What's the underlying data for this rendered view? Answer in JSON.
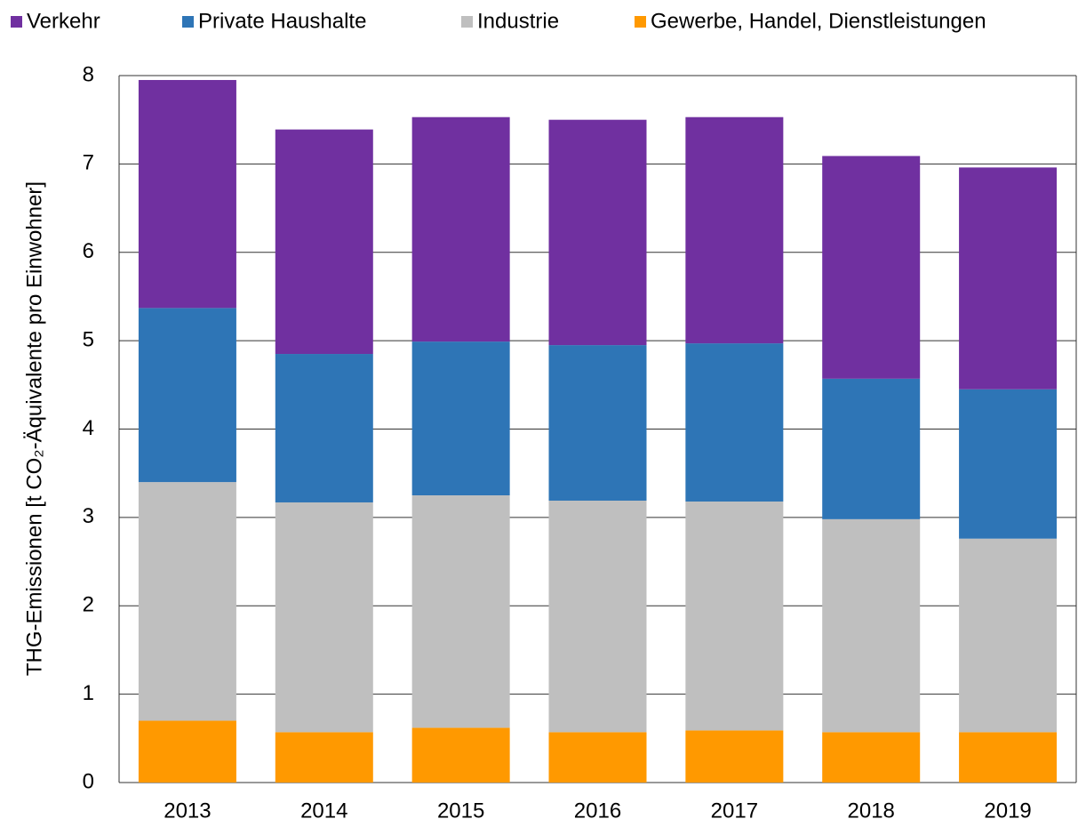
{
  "chart_data": {
    "type": "stacked_bar",
    "ylabel": "THG-Emissionen [t CO₂-Äquivalente pro Einwohner]",
    "categories": [
      "2013",
      "2014",
      "2015",
      "2016",
      "2017",
      "2018",
      "2019"
    ],
    "series": [
      {
        "name": "Verkehr",
        "color": "#7030a0",
        "values": [
          2.58,
          2.54,
          2.54,
          2.55,
          2.56,
          2.52,
          2.51
        ]
      },
      {
        "name": "Private Haushalte",
        "color": "#2e75b6",
        "values": [
          1.97,
          1.68,
          1.74,
          1.76,
          1.79,
          1.59,
          1.69
        ]
      },
      {
        "name": "Industrie",
        "color": "#bfbfbf",
        "values": [
          2.7,
          2.6,
          2.63,
          2.62,
          2.59,
          2.41,
          2.19
        ]
      },
      {
        "name": "Gewerbe, Handel, Dienstleistungen",
        "color": "#ff9900",
        "values": [
          0.7,
          0.57,
          0.62,
          0.57,
          0.59,
          0.57,
          0.57
        ]
      }
    ],
    "ylim": [
      0,
      8
    ],
    "yticks": [
      0,
      1,
      2,
      3,
      4,
      5,
      6,
      7,
      8
    ],
    "grid": true,
    "legend": "top"
  }
}
